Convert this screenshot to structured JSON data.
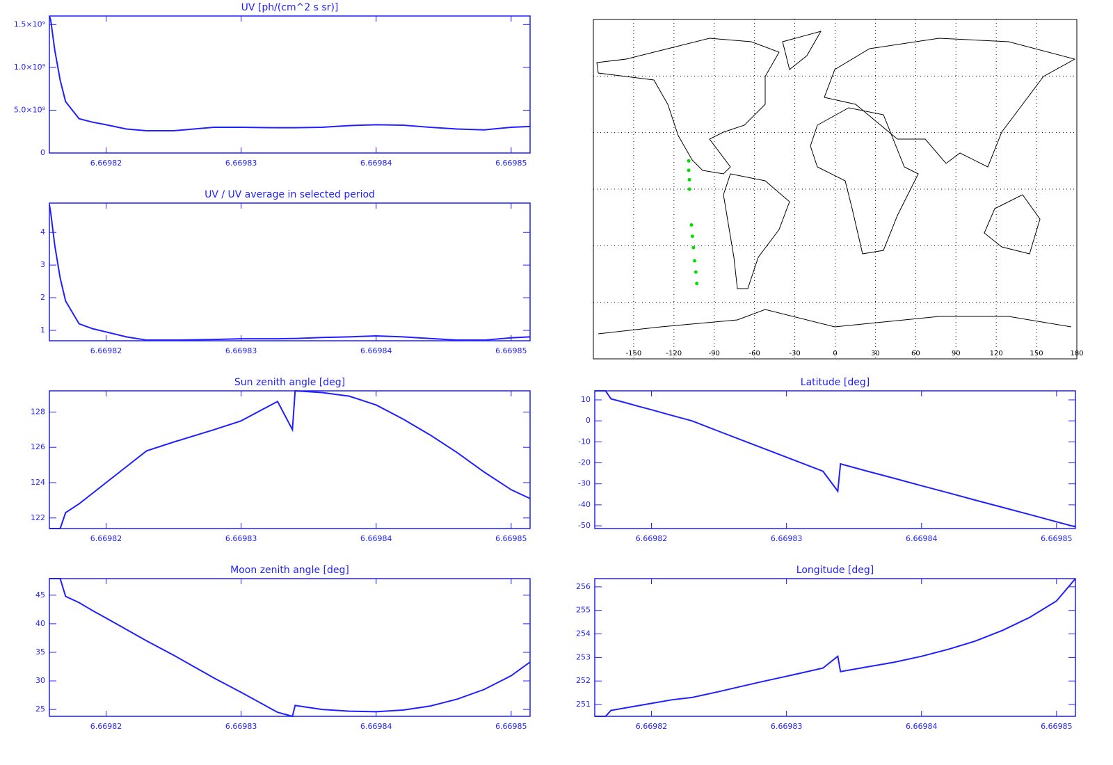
{
  "chart_data": [
    {
      "type": "line",
      "title": "UV [ph/(cm^2 s sr)]",
      "color": "#1f1fff",
      "x": [
        6.6698158,
        6.6698159,
        6.6698162,
        6.6698166,
        6.669817,
        6.669818,
        6.669819,
        6.66982,
        6.6698215,
        6.669823,
        6.669825,
        6.669828,
        6.66983,
        6.6698327,
        6.6698338,
        6.669834,
        6.669836,
        6.669838,
        6.66984,
        6.669842,
        6.669844,
        6.669846,
        6.669848,
        6.66985,
        6.6698514
      ],
      "values": [
        1600000000,
        1550000000,
        1200000000,
        850000000,
        600000000,
        400000000,
        360000000,
        330000000,
        280000000,
        260000000,
        260000000,
        300000000,
        300000000,
        295000000,
        295000000,
        295000000,
        300000000,
        320000000,
        330000000,
        325000000,
        300000000,
        280000000,
        270000000,
        300000000,
        310000000
      ],
      "xlim": [
        6.6698158,
        6.6698514
      ],
      "ylim": [
        0,
        1600000000
      ],
      "xticks": [
        6.66982,
        6.66983,
        6.66984,
        6.66985
      ],
      "yticks": [
        0,
        {
          "value": 500000000,
          "label": "5.0×10⁸"
        },
        {
          "value": 1000000000,
          "label": "1.0×10⁹"
        },
        {
          "value": 1500000000,
          "label": "1.5×10⁹"
        }
      ]
    },
    {
      "type": "line",
      "title": "UV / UV average in selected period",
      "color": "#1f1fff",
      "x": [
        6.6698158,
        6.6698159,
        6.6698162,
        6.6698166,
        6.669817,
        6.669818,
        6.669819,
        6.66982,
        6.6698215,
        6.669823,
        6.669825,
        6.669828,
        6.66983,
        6.6698327,
        6.6698338,
        6.669834,
        6.669836,
        6.669838,
        6.66984,
        6.669842,
        6.669844,
        6.669846,
        6.669848,
        6.66985,
        6.6698514
      ],
      "values": [
        4.85,
        4.6,
        3.6,
        2.6,
        1.9,
        1.2,
        1.05,
        0.95,
        0.8,
        0.7,
        0.7,
        0.72,
        0.74,
        0.74,
        0.75,
        0.75,
        0.78,
        0.8,
        0.83,
        0.8,
        0.75,
        0.7,
        0.7,
        0.77,
        0.8
      ],
      "xlim": [
        6.6698158,
        6.6698514
      ],
      "ylim": [
        0.68,
        4.9
      ],
      "xticks": [
        6.66982,
        6.66983,
        6.66984,
        6.66985
      ],
      "yticks": [
        1,
        2,
        3,
        4
      ]
    },
    {
      "type": "scatter",
      "color": "#00e000",
      "x": [
        -109,
        -109,
        -108.5,
        -108.5,
        -107,
        -106.3,
        -105.5,
        -104.6,
        -103.7,
        -103
      ],
      "y": [
        15,
        10,
        5,
        0,
        -19,
        -25,
        -31,
        -38,
        -44,
        -50
      ],
      "xlim": [
        -180,
        180
      ],
      "ylim": [
        -90,
        90
      ],
      "xticks": [
        -150,
        -120,
        -90,
        -60,
        -30,
        0,
        30,
        60,
        90,
        120,
        150,
        180
      ],
      "grid": true
    },
    {
      "type": "line",
      "title": "Sun zenith angle [deg]",
      "color": "#1f1fff",
      "x": [
        6.6698158,
        6.6698159,
        6.6698162,
        6.6698166,
        6.669817,
        6.669818,
        6.669819,
        6.66982,
        6.6698215,
        6.669823,
        6.669825,
        6.669828,
        6.66983,
        6.6698327,
        6.6698338,
        6.669834,
        6.669836,
        6.669838,
        6.66984,
        6.669842,
        6.669844,
        6.669846,
        6.669848,
        6.66985,
        6.6698514
      ],
      "values": [
        121.4,
        121.4,
        121.4,
        121.4,
        122.3,
        122.8,
        123.4,
        124.0,
        124.9,
        125.8,
        126.3,
        127.0,
        127.5,
        128.6,
        127.0,
        129.2,
        129.1,
        128.9,
        128.4,
        127.6,
        126.7,
        125.7,
        124.6,
        123.6,
        123.1
      ],
      "xlim": [
        6.6698158,
        6.6698514
      ],
      "ylim": [
        121.4,
        129.2
      ],
      "xticks": [
        6.66982,
        6.66983,
        6.66984,
        6.66985
      ],
      "yticks": [
        122,
        124,
        126,
        128
      ]
    },
    {
      "type": "line",
      "title": "Latitude [deg]",
      "color": "#1f1fff",
      "x": [
        6.6698158,
        6.6698159,
        6.6698162,
        6.6698166,
        6.669817,
        6.669818,
        6.669819,
        6.66982,
        6.6698215,
        6.669823,
        6.669825,
        6.669828,
        6.66983,
        6.6698327,
        6.6698338,
        6.669834,
        6.669836,
        6.669838,
        6.66984,
        6.669842,
        6.669844,
        6.669846,
        6.669848,
        6.66985,
        6.6698514
      ],
      "values": [
        14.3,
        14.3,
        14.3,
        14.3,
        10.5,
        8.8,
        7.0,
        5.3,
        2.6,
        0,
        -5,
        -12.4,
        -17.3,
        -24,
        -33.5,
        -20.5,
        -24,
        -27.4,
        -30.9,
        -34.3,
        -37.8,
        -41.2,
        -44.6,
        -48.1,
        -50.5
      ],
      "xlim": [
        6.6698158,
        6.6698514
      ],
      "ylim": [
        -51.3,
        14.3
      ],
      "xticks": [
        6.66982,
        6.66983,
        6.66984,
        6.66985
      ],
      "yticks": [
        10,
        0,
        -10,
        -20,
        -30,
        -40,
        -50
      ]
    },
    {
      "type": "line",
      "title": "Moon zenith angle [deg]",
      "color": "#1f1fff",
      "x": [
        6.6698158,
        6.6698159,
        6.6698162,
        6.6698166,
        6.669817,
        6.669818,
        6.669819,
        6.66982,
        6.6698215,
        6.669823,
        6.669825,
        6.669828,
        6.66983,
        6.6698327,
        6.6698338,
        6.669834,
        6.669836,
        6.669838,
        6.66984,
        6.669842,
        6.669844,
        6.669846,
        6.669848,
        6.66985,
        6.6698514
      ],
      "values": [
        47.9,
        47.9,
        47.9,
        47.9,
        44.8,
        43.7,
        42.3,
        41.0,
        39.0,
        37.0,
        34.5,
        30.5,
        28.0,
        24.5,
        23.8,
        25.7,
        25.0,
        24.7,
        24.6,
        24.9,
        25.6,
        26.8,
        28.5,
        30.9,
        33.3
      ],
      "xlim": [
        6.6698158,
        6.6698514
      ],
      "ylim": [
        23.8,
        47.9
      ],
      "xticks": [
        6.66982,
        6.66983,
        6.66984,
        6.66985
      ],
      "yticks": [
        25,
        30,
        35,
        40,
        45
      ]
    },
    {
      "type": "line",
      "title": "Longitude [deg]",
      "color": "#1f1fff",
      "x": [
        6.6698158,
        6.6698159,
        6.6698162,
        6.6698166,
        6.669817,
        6.669818,
        6.669819,
        6.66982,
        6.6698215,
        6.669823,
        6.669825,
        6.669828,
        6.66983,
        6.6698327,
        6.6698338,
        6.669834,
        6.669836,
        6.669838,
        6.66984,
        6.669842,
        6.669844,
        6.669846,
        6.669848,
        6.66985,
        6.6698514
      ],
      "values": [
        250.5,
        250.5,
        250.5,
        250.5,
        250.75,
        250.85,
        250.95,
        251.05,
        251.2,
        251.3,
        251.55,
        251.95,
        252.2,
        252.55,
        253.05,
        252.4,
        252.6,
        252.8,
        253.05,
        253.35,
        253.7,
        254.15,
        254.7,
        255.4,
        256.35
      ],
      "xlim": [
        6.6698158,
        6.6698514
      ],
      "ylim": [
        250.5,
        256.35
      ],
      "xticks": [
        6.66982,
        6.66983,
        6.66984,
        6.66985
      ],
      "yticks": [
        251,
        252,
        253,
        254,
        255,
        256
      ]
    }
  ]
}
